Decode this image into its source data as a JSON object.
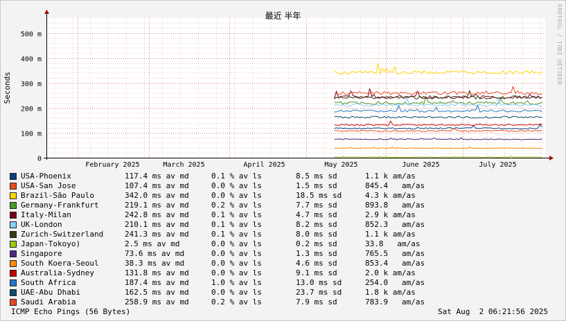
{
  "title": "最近 半年",
  "vertical_label": "RRDTOOL / TOBI OETIKER",
  "footer": {
    "left": "ICMP Echo Pings (56 Bytes)",
    "right": "Sat Aug  2 06:21:56 2025"
  },
  "colors": {
    "background": "#f3f3f3",
    "plot": "#ffffff",
    "grid_minor": "#f0c8c8",
    "grid_major": "#e08080",
    "arrow": "#a00000"
  },
  "chart_data": {
    "type": "line",
    "ylabel": "Seconds",
    "ylim": [
      0,
      0.56
    ],
    "y_ticks": [
      {
        "value": 0,
        "label": "0"
      },
      {
        "value": 0.1,
        "label": "100 m"
      },
      {
        "value": 0.2,
        "label": "200 m"
      },
      {
        "value": 0.3,
        "label": "300 m"
      },
      {
        "value": 0.4,
        "label": "400 m"
      },
      {
        "value": 0.5,
        "label": "500 m"
      }
    ],
    "x_ticks": [
      "February 2025",
      "March 2025",
      "April 2025",
      "May 2025",
      "June 2025",
      "July 2025"
    ],
    "x_tick_positions": [
      "2025-02-01",
      "2025-03-01",
      "2025-04-01",
      "2025-05-01",
      "2025-06-01",
      "2025-07-01"
    ],
    "x_range": [
      "2025-01-20",
      "2025-08-02"
    ],
    "data_start": "2025-05-12",
    "series": [
      {
        "name": "USA-Phoenix",
        "color": "#0a3f7a",
        "avg": 0.1174,
        "avg_text": "117.4 ms av md",
        "loss_text": "0.1 % av ls",
        "sd_text": "8.5 ms sd",
        "am_text": "1.1 k am/as"
      },
      {
        "name": "USA-San Jose",
        "color": "#ea4e1b",
        "avg": 0.1074,
        "avg_text": "107.4 ms av md",
        "loss_text": "0.0 % av ls",
        "sd_text": "1.5 ms sd",
        "am_text": "845.4   am/as"
      },
      {
        "name": "Brazil-São Paulo",
        "color": "#ffd700",
        "avg": 0.342,
        "avg_text": "342.0 ms av md",
        "loss_text": "0.0 % av ls",
        "sd_text": "18.5 ms sd",
        "am_text": "4.3 k am/as"
      },
      {
        "name": "Germany-Frankfurt",
        "color": "#4c9a2a",
        "avg": 0.2191,
        "avg_text": "219.1 ms av md",
        "loss_text": "0.2 % av ls",
        "sd_text": "7.7 ms sd",
        "am_text": "893.8   am/as"
      },
      {
        "name": "Italy-Milan",
        "color": "#7a0019",
        "avg": 0.2428,
        "avg_text": "242.8 ms av md",
        "loss_text": "0.1 % av ls",
        "sd_text": "4.7 ms sd",
        "am_text": "2.9 k am/as"
      },
      {
        "name": "UK-London",
        "color": "#87cefa",
        "avg": 0.2101,
        "avg_text": "210.1 ms av md",
        "loss_text": "0.1 % av ls",
        "sd_text": "8.2 ms sd",
        "am_text": "852.3   am/as"
      },
      {
        "name": "Zurich-Switzerland",
        "color": "#2e3d1a",
        "avg": 0.2413,
        "avg_text": "241.3 ms av md",
        "loss_text": "0.1 % av ls",
        "sd_text": "8.0 ms sd",
        "am_text": "1.1 k am/as"
      },
      {
        "name": "Japan-Tokoyo)",
        "color": "#a0c814",
        "avg": 0.0025,
        "avg_text": "2.5 ms av md",
        "loss_text": "0.0 % av ls",
        "sd_text": "0.2 ms sd",
        "am_text": "33.8   am/as"
      },
      {
        "name": "Singapore",
        "color": "#4b2882",
        "avg": 0.0736,
        "avg_text": "73.6 ms av md",
        "loss_text": "0.0 % av ls",
        "sd_text": "1.3 ms sd",
        "am_text": "765.5   am/as"
      },
      {
        "name": "South Koera-Seoul",
        "color": "#ff8c00",
        "avg": 0.0383,
        "avg_text": "38.3 ms av md",
        "loss_text": "0.0 % av ls",
        "sd_text": "4.6 ms sd",
        "am_text": "853.4   am/as"
      },
      {
        "name": "Australia-Sydney",
        "color": "#c80000",
        "avg": 0.1318,
        "avg_text": "131.8 ms av md",
        "loss_text": "0.0 % av ls",
        "sd_text": "9.1 ms sd",
        "am_text": "2.0 k am/as"
      },
      {
        "name": "South Africa",
        "color": "#1e78c8",
        "avg": 0.1874,
        "avg_text": "187.4 ms av md",
        "loss_text": "1.0 % av ls",
        "sd_text": "13.0 ms sd",
        "am_text": "254.0   am/as"
      },
      {
        "name": "UAE-Abu Dhabi",
        "color": "#0d4d6e",
        "avg": 0.1625,
        "avg_text": "162.5 ms av md",
        "loss_text": "0.0 % av ls",
        "sd_text": "23.7 ms sd",
        "am_text": "1.8 k am/as"
      },
      {
        "name": "Saudi Arabia",
        "color": "#e64b28",
        "avg": 0.2589,
        "avg_text": "258.9 ms av md",
        "loss_text": "0.2 % av ls",
        "sd_text": "7.9 ms sd",
        "am_text": "783.9   am/as"
      }
    ]
  }
}
